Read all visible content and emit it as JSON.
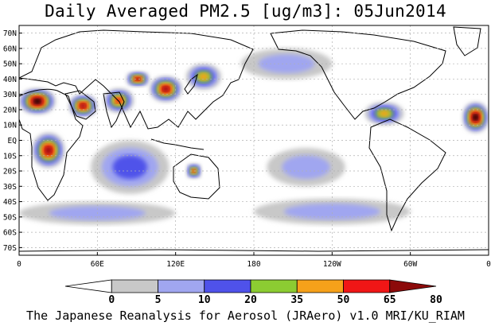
{
  "title": "Daily Averaged PM2.5 [ug/m3]: 05Jun2014",
  "footer": "The Japanese Reanalysis for Aerosol (JRAero) v1.0 MRI/KU_RIAM",
  "map": {
    "projection": "equirectangular",
    "lon_range": [
      0,
      360
    ],
    "lat_range": [
      -75,
      75
    ],
    "lat_ticks": [
      {
        "v": 70,
        "label": "70N"
      },
      {
        "v": 60,
        "label": "60N"
      },
      {
        "v": 50,
        "label": "50N"
      },
      {
        "v": 40,
        "label": "40N"
      },
      {
        "v": 30,
        "label": "30N"
      },
      {
        "v": 20,
        "label": "20N"
      },
      {
        "v": 10,
        "label": "10N"
      },
      {
        "v": 0,
        "label": "EQ"
      },
      {
        "v": -10,
        "label": "10S"
      },
      {
        "v": -20,
        "label": "20S"
      },
      {
        "v": -30,
        "label": "30S"
      },
      {
        "v": -40,
        "label": "40S"
      },
      {
        "v": -50,
        "label": "50S"
      },
      {
        "v": -60,
        "label": "60S"
      },
      {
        "v": -70,
        "label": "70S"
      }
    ],
    "lon_ticks": [
      {
        "v": 0,
        "label": "0"
      },
      {
        "v": 60,
        "label": "60E"
      },
      {
        "v": 120,
        "label": "120E"
      },
      {
        "v": 180,
        "label": "180"
      },
      {
        "v": 240,
        "label": "120W"
      },
      {
        "v": 300,
        "label": "60W"
      },
      {
        "v": 360,
        "label": "0"
      }
    ]
  },
  "colorbar": {
    "levels": [
      "0",
      "5",
      "10",
      "20",
      "35",
      "50",
      "65",
      "80"
    ],
    "colors": [
      "#ffffff",
      "#c8c8c8",
      "#a0a6f0",
      "#4f52ea",
      "#8ccc32",
      "#f6a11a",
      "#f01616",
      "#8c0a0a"
    ]
  },
  "fields": [
    {
      "name": "plume-west-africa",
      "lon": [
        0,
        28
      ],
      "lat": [
        17,
        34
      ],
      "level": 8
    },
    {
      "name": "plume-arabia",
      "lon": [
        38,
        60
      ],
      "lat": [
        15,
        30
      ],
      "level": 7
    },
    {
      "name": "plume-india",
      "lon": [
        65,
        88
      ],
      "lat": [
        18,
        34
      ],
      "level": 6
    },
    {
      "name": "plume-east-china",
      "lon": [
        100,
        125
      ],
      "lat": [
        25,
        42
      ],
      "level": 7
    },
    {
      "name": "plume-central-asia",
      "lon": [
        82,
        100
      ],
      "lat": [
        35,
        45
      ],
      "level": 7
    },
    {
      "name": "plume-japan",
      "lon": [
        128,
        155
      ],
      "lat": [
        33,
        50
      ],
      "level": 5
    },
    {
      "name": "plume-central-africa",
      "lon": [
        10,
        35
      ],
      "lat": [
        -18,
        5
      ],
      "level": 7
    },
    {
      "name": "plume-east-atlantic",
      "lon": [
        340,
        360
      ],
      "lat": [
        5,
        25
      ],
      "level": 8
    },
    {
      "name": "plume-caribbean",
      "lon": [
        265,
        295
      ],
      "lat": [
        10,
        25
      ],
      "level": 5
    },
    {
      "name": "plume-australia",
      "lon": [
        128,
        140
      ],
      "lat": [
        -25,
        -15
      ],
      "level": 6
    },
    {
      "name": "haze-southern-ocean-1",
      "lon": [
        0,
        120
      ],
      "lat": [
        -55,
        -40
      ],
      "level": 2
    },
    {
      "name": "haze-southern-ocean-2",
      "lon": [
        180,
        300
      ],
      "lat": [
        -55,
        -38
      ],
      "level": 2
    },
    {
      "name": "haze-north-pacific",
      "lon": [
        170,
        240
      ],
      "lat": [
        40,
        60
      ],
      "level": 2
    },
    {
      "name": "haze-indian-ocean",
      "lon": [
        55,
        115
      ],
      "lat": [
        -35,
        0
      ],
      "level": 3
    },
    {
      "name": "haze-south-pacific",
      "lon": [
        190,
        250
      ],
      "lat": [
        -30,
        -5
      ],
      "level": 2
    }
  ]
}
